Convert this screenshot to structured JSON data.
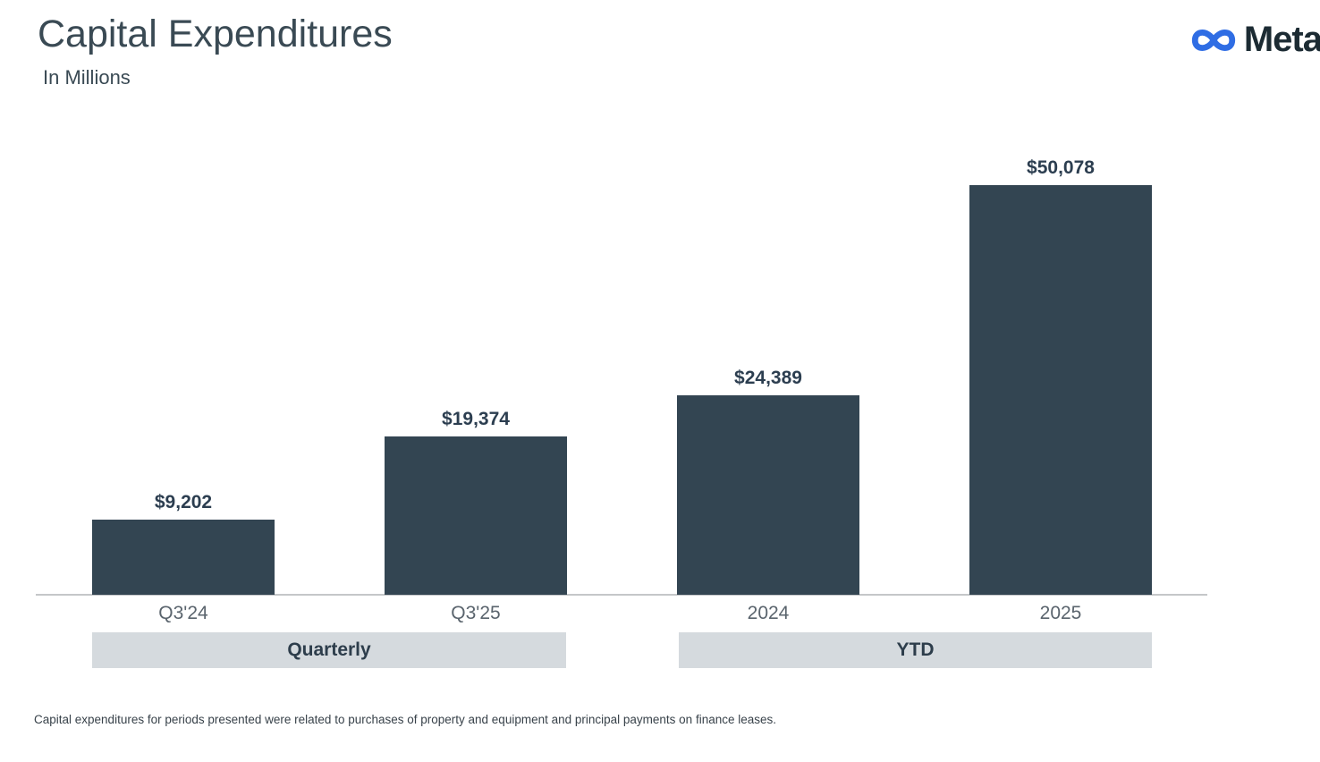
{
  "header": {
    "title": "Capital Expenditures",
    "subtitle": "In Millions",
    "brand": "Meta"
  },
  "chart_data": {
    "type": "bar",
    "title": "Capital Expenditures",
    "units": "In Millions",
    "categories": [
      "Q3'24",
      "Q3'25",
      "2024",
      "2025"
    ],
    "values": [
      9202,
      19374,
      24389,
      50078
    ],
    "value_labels": [
      "$9,202",
      "$19,374",
      "$24,389",
      "$50,078"
    ],
    "groups": [
      {
        "label": "Quarterly",
        "categories": [
          "Q3'24",
          "Q3'25"
        ]
      },
      {
        "label": "YTD",
        "categories": [
          "2024",
          "2025"
        ]
      }
    ],
    "ylim": [
      0,
      50078
    ],
    "bar_color": "#334552",
    "grid": false,
    "legend": "none"
  },
  "colors": {
    "brand_blue": "#2f6de4",
    "brand_dark": "#1c2b33",
    "bar": "#334552",
    "pill_bg": "#d5dade",
    "axis": "#c5c7c9"
  },
  "footnote": "Capital expenditures for periods presented were related to purchases of property and equipment and principal payments on finance leases."
}
